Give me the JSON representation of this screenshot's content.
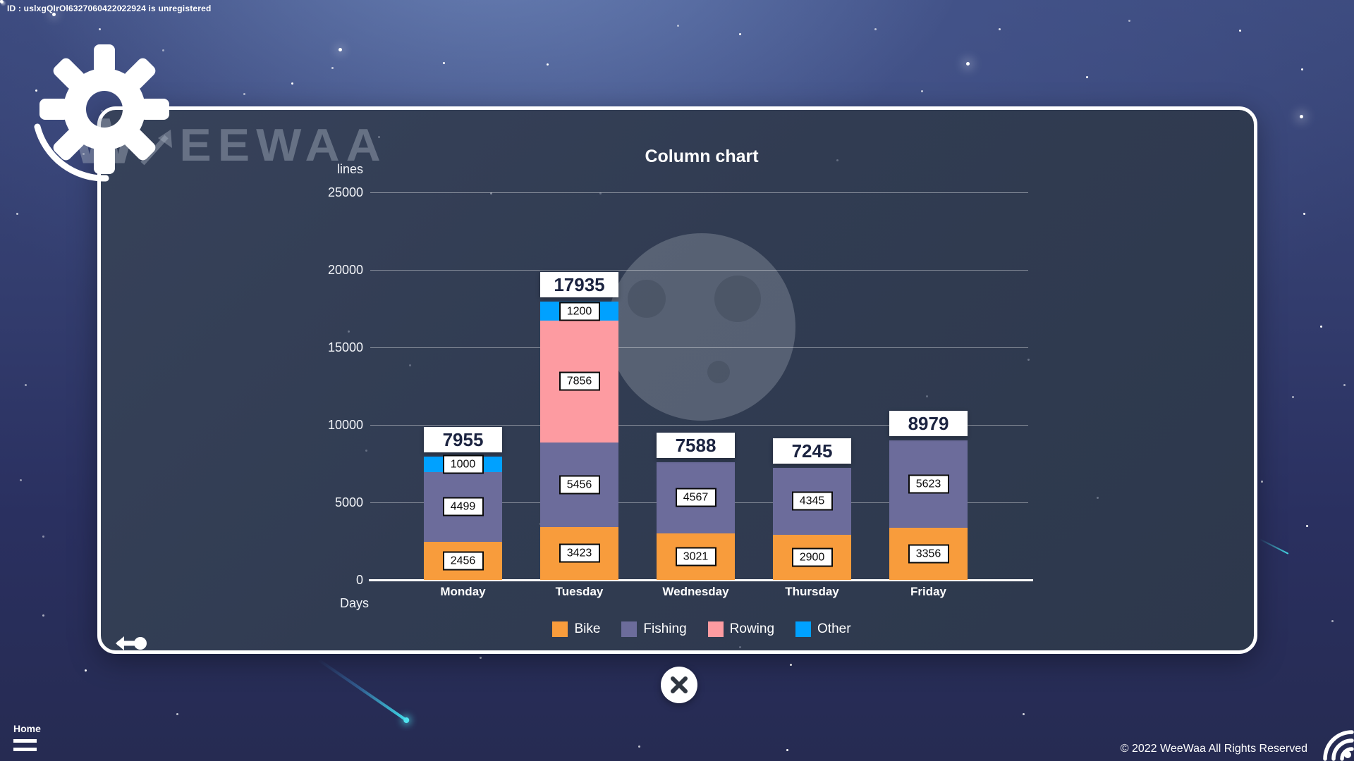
{
  "registration_notice": "ID : uslxgQIrOl6327060422022924 is unregistered",
  "brand": {
    "mark": "W",
    "name": "EEWAA"
  },
  "chart_data": {
    "type": "bar",
    "stacked": true,
    "title": "Column chart",
    "ylabel": "lines",
    "xlabel": "Days",
    "categories": [
      "Monday",
      "Tuesday",
      "Wednesday",
      "Thursday",
      "Friday"
    ],
    "series": [
      {
        "name": "Bike",
        "color": "#F89C3C",
        "values": [
          2456,
          3423,
          3021,
          2900,
          3356
        ]
      },
      {
        "name": "Fishing",
        "color": "#6C6C9B",
        "values": [
          4499,
          5456,
          4567,
          4345,
          5623
        ]
      },
      {
        "name": "Rowing",
        "color": "#FD9BA1",
        "values": [
          0,
          7856,
          0,
          0,
          0
        ]
      },
      {
        "name": "Other",
        "color": "#00A1FF",
        "values": [
          1000,
          1200,
          0,
          0,
          0
        ]
      }
    ],
    "totals": [
      7955,
      17935,
      7588,
      7245,
      8979
    ],
    "ylim": [
      0,
      25000
    ],
    "yticks": [
      0,
      5000,
      10000,
      15000,
      20000,
      25000
    ],
    "grid": true,
    "legend_position": "bottom"
  },
  "footer": {
    "home_label": "Home",
    "copyright": "© 2022 WeeWaa All Rights Reserved"
  },
  "icons": {
    "gear": "gear-icon",
    "watermark_arrow": "arrow-up-right-icon",
    "back": "back-arrow-icon",
    "close": "close-icon",
    "menu": "menu-icon",
    "signal": "signal-icon"
  }
}
